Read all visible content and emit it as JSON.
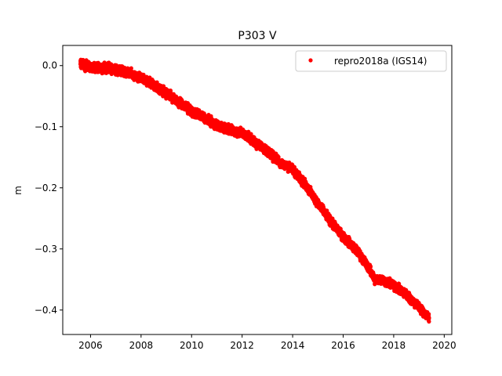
{
  "chart_data": {
    "type": "scatter",
    "title": "P303 V",
    "xlabel": "",
    "ylabel": "m",
    "xlim": [
      2004.9,
      2020.3
    ],
    "ylim": [
      -0.44,
      0.033
    ],
    "x_ticks": [
      2006,
      2008,
      2010,
      2012,
      2014,
      2016,
      2018,
      2020
    ],
    "y_ticks": [
      0.0,
      -0.1,
      -0.2,
      -0.3,
      -0.4
    ],
    "y_tick_labels": [
      "0.0",
      "−0.1",
      "−0.2",
      "−0.3",
      "−0.4"
    ],
    "grid": false,
    "legend": {
      "position": "upper right"
    },
    "series": [
      {
        "name": "repro2018a (IGS14)",
        "color": "#ff0000",
        "marker": "circle",
        "trend_x": [
          2005.6,
          2006.0,
          2006.5,
          2007.0,
          2007.5,
          2008.0,
          2008.5,
          2009.0,
          2009.5,
          2010.0,
          2010.5,
          2011.0,
          2011.5,
          2012.0,
          2012.5,
          2013.0,
          2013.5,
          2014.0,
          2014.5,
          2015.0,
          2015.5,
          2016.0,
          2016.5,
          2017.0,
          2017.25,
          2017.5,
          2018.0,
          2018.5,
          2019.0,
          2019.4
        ],
        "trend_y": [
          0.003,
          -0.002,
          -0.004,
          -0.006,
          -0.012,
          -0.02,
          -0.032,
          -0.045,
          -0.06,
          -0.075,
          -0.085,
          -0.098,
          -0.105,
          -0.11,
          -0.125,
          -0.14,
          -0.158,
          -0.17,
          -0.195,
          -0.225,
          -0.255,
          -0.28,
          -0.3,
          -0.33,
          -0.35,
          -0.35,
          -0.36,
          -0.375,
          -0.395,
          -0.413
        ]
      }
    ]
  }
}
